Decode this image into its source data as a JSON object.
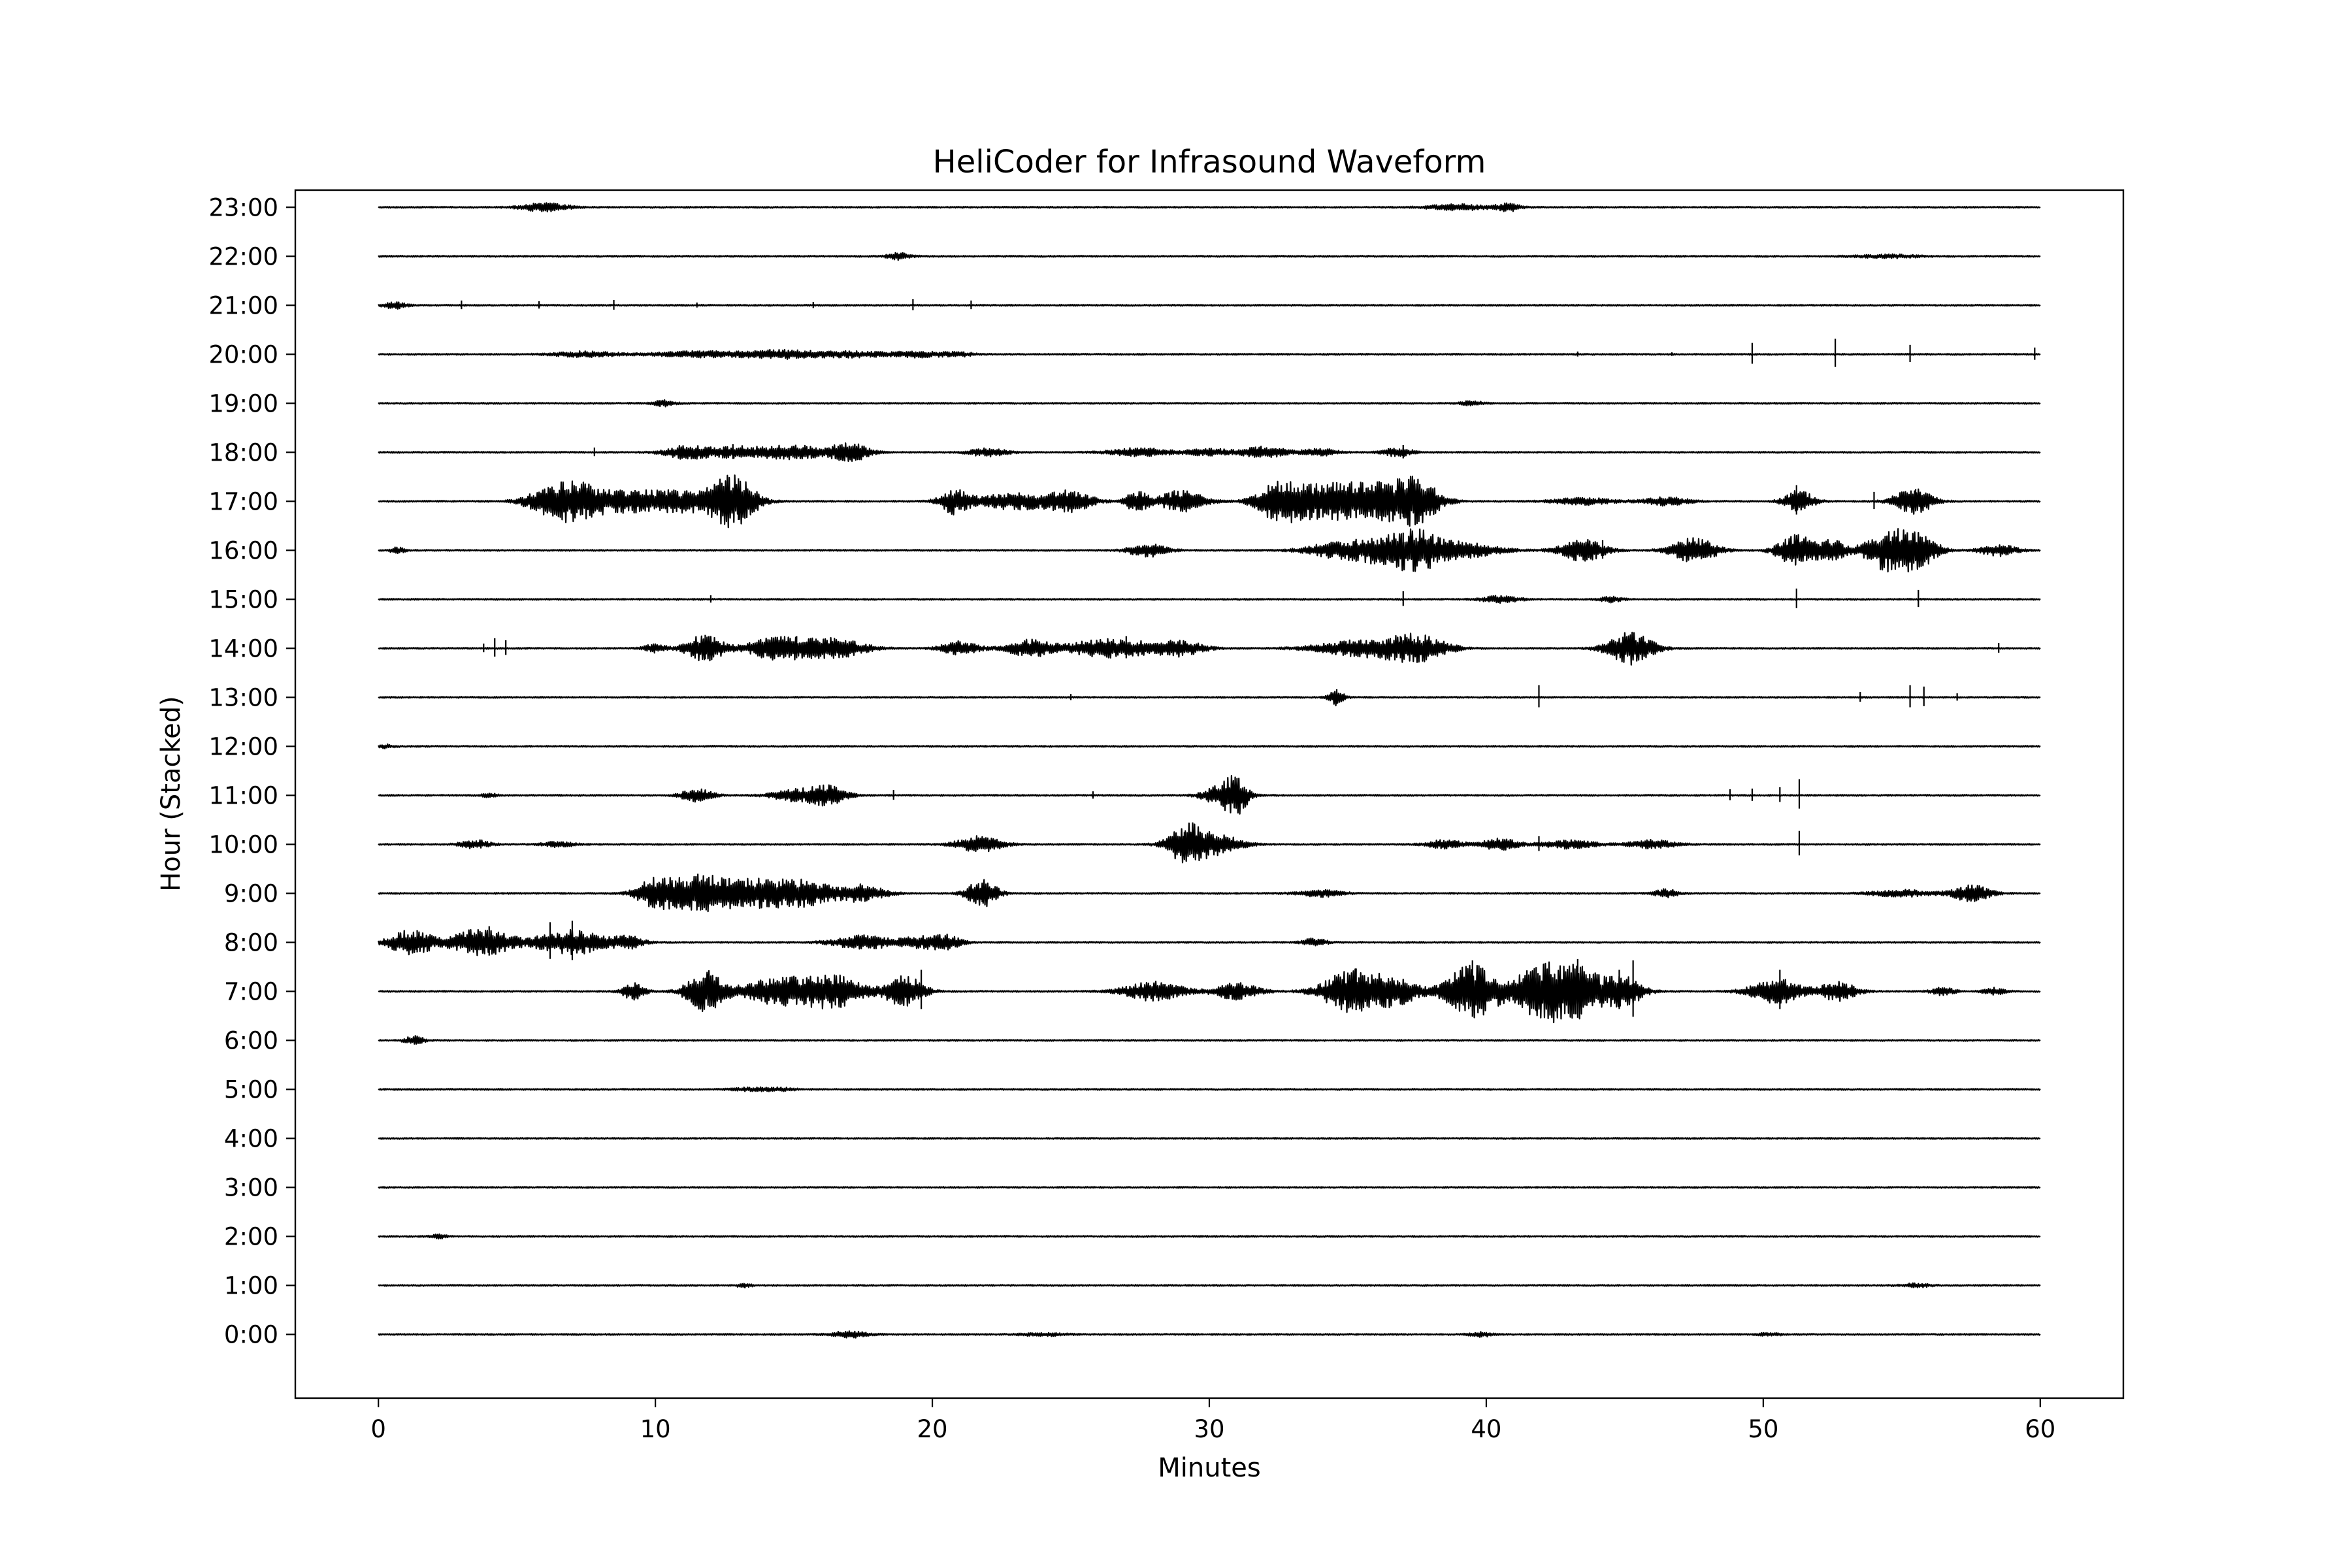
{
  "chart_data": {
    "type": "line",
    "title": "HeliCoder for Infrasound Waveform",
    "xlabel": "Minutes",
    "ylabel": "Hour (Stacked)",
    "xlim": [
      -3,
      63
    ],
    "ylim": [
      -1.3,
      23.35
    ],
    "xticks": [
      0,
      10,
      20,
      30,
      40,
      50,
      60
    ],
    "grid": false,
    "line_color": "#000000",
    "trace_xrange": [
      0,
      60
    ],
    "series": [
      {
        "hour": 0,
        "label": "0:00",
        "bursts": [
          [
            17.0,
            0.5,
            0.12
          ],
          [
            24.0,
            0.6,
            0.05
          ],
          [
            39.8,
            0.3,
            0.08
          ],
          [
            50.2,
            0.3,
            0.05
          ]
        ],
        "spikes": []
      },
      {
        "hour": 1,
        "label": "1:00",
        "bursts": [
          [
            13.2,
            0.2,
            0.06
          ],
          [
            55.5,
            0.4,
            0.06
          ]
        ],
        "spikes": []
      },
      {
        "hour": 2,
        "label": "2:00",
        "bursts": [
          [
            2.2,
            0.2,
            0.07
          ]
        ],
        "spikes": []
      },
      {
        "hour": 3,
        "label": "3:00",
        "bursts": [],
        "spikes": []
      },
      {
        "hour": 4,
        "label": "4:00",
        "bursts": [],
        "spikes": []
      },
      {
        "hour": 5,
        "label": "5:00",
        "bursts": [
          [
            13.5,
            0.5,
            0.06
          ],
          [
            14.5,
            0.4,
            0.05
          ]
        ],
        "spikes": []
      },
      {
        "hour": 6,
        "label": "6:00",
        "bursts": [
          [
            1.3,
            0.25,
            0.15
          ]
        ],
        "spikes": []
      },
      {
        "hour": 7,
        "label": "7:00",
        "bursts": [
          [
            9.2,
            0.3,
            0.3
          ],
          [
            11.8,
            0.5,
            0.75
          ],
          [
            14.5,
            1.0,
            0.5
          ],
          [
            16.5,
            0.8,
            0.55
          ],
          [
            19.0,
            0.5,
            0.6
          ],
          [
            28.0,
            0.8,
            0.35
          ],
          [
            31.0,
            0.6,
            0.3
          ],
          [
            35.2,
            0.8,
            0.8
          ],
          [
            36.8,
            0.6,
            0.45
          ],
          [
            39.5,
            0.7,
            1.0
          ],
          [
            41.8,
            0.7,
            0.75
          ],
          [
            43.2,
            0.8,
            1.0
          ],
          [
            45.0,
            0.5,
            0.5
          ],
          [
            50.5,
            0.7,
            0.45
          ],
          [
            52.7,
            0.5,
            0.35
          ],
          [
            56.5,
            0.3,
            0.15
          ],
          [
            58.3,
            0.3,
            0.12
          ]
        ],
        "spikes": [
          [
            19.6,
            1.6
          ],
          [
            35.3,
            1.7
          ],
          [
            39.5,
            2.3
          ],
          [
            41.8,
            1.8
          ],
          [
            43.3,
            2.4
          ],
          [
            45.3,
            2.3
          ],
          [
            44.8,
            1.6
          ],
          [
            11.9,
            1.3
          ],
          [
            50.6,
            1.6
          ]
        ]
      },
      {
        "hour": 8,
        "label": "8:00",
        "bursts": [
          [
            1.2,
            0.6,
            0.45
          ],
          [
            3.7,
            0.8,
            0.5
          ],
          [
            7.0,
            1.0,
            0.45
          ],
          [
            9.0,
            0.4,
            0.2
          ],
          [
            17.5,
            0.8,
            0.25
          ],
          [
            19.5,
            0.5,
            0.2
          ],
          [
            20.5,
            0.4,
            0.25
          ],
          [
            33.8,
            0.3,
            0.15
          ]
        ],
        "spikes": [
          [
            4.0,
            1.2
          ],
          [
            7.0,
            1.6
          ],
          [
            1.4,
            0.9
          ],
          [
            6.2,
            1.5
          ]
        ]
      },
      {
        "hour": 9,
        "label": "9:00",
        "bursts": [
          [
            10.0,
            0.5,
            0.5
          ],
          [
            11.5,
            0.8,
            0.55
          ],
          [
            13.5,
            1.2,
            0.5
          ],
          [
            15.5,
            0.8,
            0.35
          ],
          [
            17.5,
            0.6,
            0.3
          ],
          [
            21.8,
            0.4,
            0.5
          ],
          [
            34.0,
            0.6,
            0.12
          ],
          [
            46.5,
            0.3,
            0.15
          ],
          [
            55.0,
            0.8,
            0.12
          ],
          [
            57.5,
            0.5,
            0.3
          ]
        ],
        "spikes": [
          [
            21.8,
            0.8
          ],
          [
            13.0,
            0.9
          ]
        ]
      },
      {
        "hour": 10,
        "label": "10:00",
        "bursts": [
          [
            3.5,
            0.4,
            0.15
          ],
          [
            6.5,
            0.4,
            0.1
          ],
          [
            21.7,
            0.6,
            0.3
          ],
          [
            29.2,
            0.5,
            0.75
          ],
          [
            30.4,
            0.6,
            0.35
          ],
          [
            38.5,
            0.5,
            0.15
          ],
          [
            40.5,
            0.5,
            0.2
          ],
          [
            43.0,
            0.7,
            0.15
          ],
          [
            46.0,
            0.6,
            0.15
          ]
        ],
        "spikes": [
          [
            29.1,
            0.9
          ],
          [
            51.3,
            1.0
          ],
          [
            41.9,
            0.6
          ]
        ]
      },
      {
        "hour": 11,
        "label": "11:00",
        "bursts": [
          [
            11.5,
            0.4,
            0.25
          ],
          [
            15.0,
            0.6,
            0.2
          ],
          [
            16.2,
            0.5,
            0.35
          ],
          [
            30.5,
            0.5,
            0.4
          ],
          [
            31.0,
            0.3,
            0.5
          ],
          [
            4.0,
            0.2,
            0.08
          ]
        ],
        "spikes": [
          [
            48.8,
            0.45
          ],
          [
            49.6,
            0.5
          ],
          [
            50.6,
            0.6
          ],
          [
            51.3,
            1.2
          ],
          [
            18.6,
            0.4
          ],
          [
            25.8,
            0.3
          ]
        ]
      },
      {
        "hour": 12,
        "label": "12:00",
        "bursts": [
          [
            0.3,
            0.2,
            0.06
          ]
        ],
        "spikes": []
      },
      {
        "hour": 13,
        "label": "13:00",
        "bursts": [
          [
            34.6,
            0.2,
            0.3
          ]
        ],
        "spikes": [
          [
            34.6,
            0.6
          ],
          [
            41.9,
            0.9
          ],
          [
            55.3,
            0.9
          ],
          [
            55.8,
            0.8
          ],
          [
            53.5,
            0.4
          ],
          [
            57.0,
            0.3
          ],
          [
            25.0,
            0.25
          ]
        ]
      },
      {
        "hour": 14,
        "label": "14:00",
        "bursts": [
          [
            11.8,
            0.5,
            0.5
          ],
          [
            14.5,
            0.8,
            0.45
          ],
          [
            16.5,
            0.8,
            0.35
          ],
          [
            21.0,
            0.5,
            0.25
          ],
          [
            23.5,
            0.6,
            0.3
          ],
          [
            26.5,
            1.2,
            0.35
          ],
          [
            29.0,
            0.6,
            0.25
          ],
          [
            35.5,
            1.2,
            0.3
          ],
          [
            37.5,
            0.8,
            0.45
          ],
          [
            45.2,
            0.6,
            0.6
          ],
          [
            10.0,
            0.3,
            0.15
          ]
        ],
        "spikes": [
          [
            4.2,
            0.75
          ],
          [
            4.6,
            0.6
          ],
          [
            3.8,
            0.35
          ],
          [
            15.1,
            0.9
          ],
          [
            58.5,
            0.4
          ],
          [
            36.9,
            0.9
          ],
          [
            11.8,
            1.0
          ],
          [
            27.0,
            0.9
          ]
        ]
      },
      {
        "hour": 15,
        "label": "15:00",
        "bursts": [
          [
            40.5,
            0.5,
            0.12
          ],
          [
            44.5,
            0.3,
            0.1
          ]
        ],
        "spikes": [
          [
            12.0,
            0.3
          ],
          [
            51.2,
            0.8
          ],
          [
            55.6,
            0.7
          ],
          [
            37.0,
            0.6
          ]
        ]
      },
      {
        "hour": 16,
        "label": "16:00",
        "bursts": [
          [
            0.7,
            0.2,
            0.1
          ],
          [
            27.8,
            0.5,
            0.25
          ],
          [
            34.5,
            0.8,
            0.25
          ],
          [
            36.2,
            0.8,
            0.45
          ],
          [
            37.5,
            0.6,
            0.6
          ],
          [
            39.0,
            1.0,
            0.3
          ],
          [
            43.5,
            0.6,
            0.4
          ],
          [
            47.5,
            0.6,
            0.45
          ],
          [
            51.2,
            0.5,
            0.6
          ],
          [
            52.5,
            0.4,
            0.35
          ],
          [
            54.5,
            0.6,
            0.75
          ],
          [
            55.6,
            0.5,
            0.6
          ],
          [
            58.5,
            0.5,
            0.2
          ]
        ],
        "spikes": [
          [
            35.3,
            0.85
          ],
          [
            37.0,
            1.3
          ],
          [
            44.2,
            0.75
          ]
        ]
      },
      {
        "hour": 17,
        "label": "17:00",
        "bursts": [
          [
            6.0,
            0.6,
            0.35
          ],
          [
            7.0,
            0.6,
            0.5
          ],
          [
            8.5,
            1.2,
            0.4
          ],
          [
            11.0,
            1.0,
            0.35
          ],
          [
            12.8,
            0.6,
            0.9
          ],
          [
            20.8,
            0.4,
            0.45
          ],
          [
            23.0,
            1.0,
            0.3
          ],
          [
            25.0,
            0.6,
            0.35
          ],
          [
            27.4,
            0.3,
            0.4
          ],
          [
            29.0,
            0.6,
            0.4
          ],
          [
            32.5,
            0.6,
            0.6
          ],
          [
            34.0,
            1.0,
            0.55
          ],
          [
            36.0,
            1.0,
            0.6
          ],
          [
            37.5,
            0.6,
            0.7
          ],
          [
            43.5,
            0.8,
            0.12
          ],
          [
            46.5,
            0.6,
            0.15
          ],
          [
            51.3,
            0.4,
            0.4
          ],
          [
            55.4,
            0.5,
            0.5
          ]
        ],
        "spikes": [
          [
            13.0,
            1.7
          ],
          [
            37.0,
            1.4
          ],
          [
            51.2,
            1.2
          ],
          [
            55.5,
            0.9
          ],
          [
            54.0,
            0.7
          ],
          [
            8.0,
            0.4
          ]
        ]
      },
      {
        "hour": 18,
        "label": "18:00",
        "bursts": [
          [
            11.2,
            0.6,
            0.25
          ],
          [
            13.0,
            0.8,
            0.2
          ],
          [
            15.0,
            0.8,
            0.25
          ],
          [
            17.0,
            0.5,
            0.35
          ],
          [
            22.0,
            0.5,
            0.15
          ],
          [
            27.5,
            0.8,
            0.15
          ],
          [
            30.0,
            0.6,
            0.12
          ],
          [
            32.0,
            0.6,
            0.2
          ],
          [
            34.0,
            0.5,
            0.12
          ],
          [
            36.8,
            0.4,
            0.15
          ]
        ],
        "spikes": [
          [
            7.8,
            0.35
          ],
          [
            12.8,
            0.6
          ],
          [
            17.2,
            0.6
          ],
          [
            37.0,
            0.55
          ]
        ]
      },
      {
        "hour": 19,
        "label": "19:00",
        "bursts": [
          [
            10.3,
            0.3,
            0.1
          ],
          [
            39.5,
            0.3,
            0.08
          ]
        ],
        "spikes": []
      },
      {
        "hour": 20,
        "label": "20:00",
        "bursts": [
          [
            7.5,
            0.8,
            0.1
          ],
          [
            11.5,
            1.2,
            0.1
          ],
          [
            14.5,
            1.0,
            0.15
          ],
          [
            17.0,
            1.0,
            0.1
          ],
          [
            19.5,
            0.8,
            0.1
          ],
          [
            21.0,
            0.4,
            0.06
          ]
        ],
        "spikes": [
          [
            49.6,
            0.85
          ],
          [
            52.6,
            1.15
          ],
          [
            55.3,
            0.7
          ],
          [
            59.8,
            0.5
          ],
          [
            43.3,
            0.2
          ],
          [
            46.7,
            0.15
          ]
        ]
      },
      {
        "hour": 21,
        "label": "21:00",
        "bursts": [
          [
            0.6,
            0.3,
            0.12
          ]
        ],
        "spikes": [
          [
            3.0,
            0.35
          ],
          [
            5.8,
            0.3
          ],
          [
            8.5,
            0.4
          ],
          [
            19.3,
            0.45
          ],
          [
            21.4,
            0.35
          ],
          [
            15.7,
            0.25
          ],
          [
            11.5,
            0.2
          ]
        ]
      },
      {
        "hour": 22,
        "label": "22:00",
        "bursts": [
          [
            18.8,
            0.3,
            0.12
          ],
          [
            54.5,
            0.8,
            0.06
          ]
        ],
        "spikes": []
      },
      {
        "hour": 23,
        "label": "23:00",
        "bursts": [
          [
            6.0,
            0.6,
            0.15
          ],
          [
            39.0,
            0.8,
            0.1
          ],
          [
            40.8,
            0.3,
            0.15
          ]
        ],
        "spikes": []
      }
    ]
  }
}
